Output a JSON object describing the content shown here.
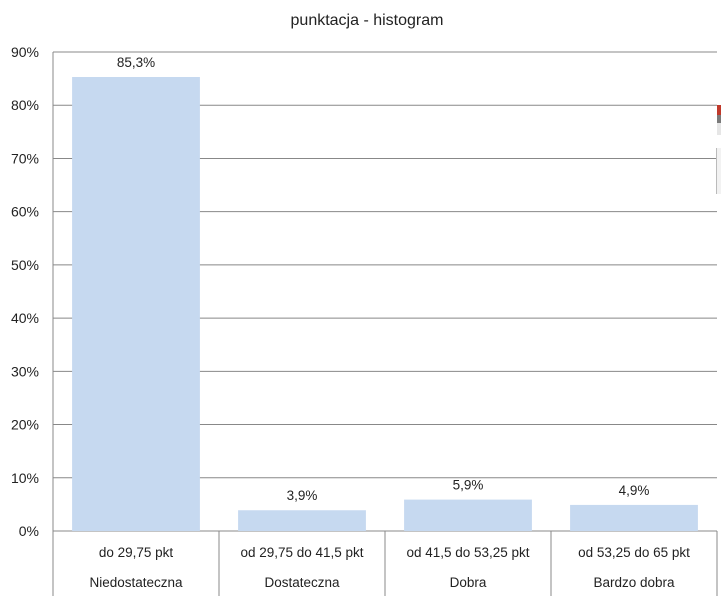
{
  "chart_data": {
    "type": "bar",
    "title": "punktacja - histogram",
    "xlabel": "",
    "ylabel": "",
    "ylim": [
      0,
      90
    ],
    "yticks": [
      "0%",
      "10%",
      "20%",
      "30%",
      "40%",
      "50%",
      "60%",
      "70%",
      "80%",
      "90%"
    ],
    "categories": [
      {
        "range": "do 29,75 pkt",
        "grade": "Niedostateczna"
      },
      {
        "range": "od 29,75 do 41,5 pkt",
        "grade": "Dostateczna"
      },
      {
        "range": "od 41,5 do 53,25 pkt",
        "grade": "Dobra"
      },
      {
        "range": "od 53,25 do 65 pkt",
        "grade": "Bardzo dobra"
      }
    ],
    "values": [
      85.3,
      3.9,
      5.9,
      4.9
    ],
    "data_labels": [
      "85,3%",
      "3,9%",
      "5,9%",
      "4,9%"
    ],
    "bar_color": "#c6d9f0",
    "grid": true,
    "legend": "none"
  }
}
